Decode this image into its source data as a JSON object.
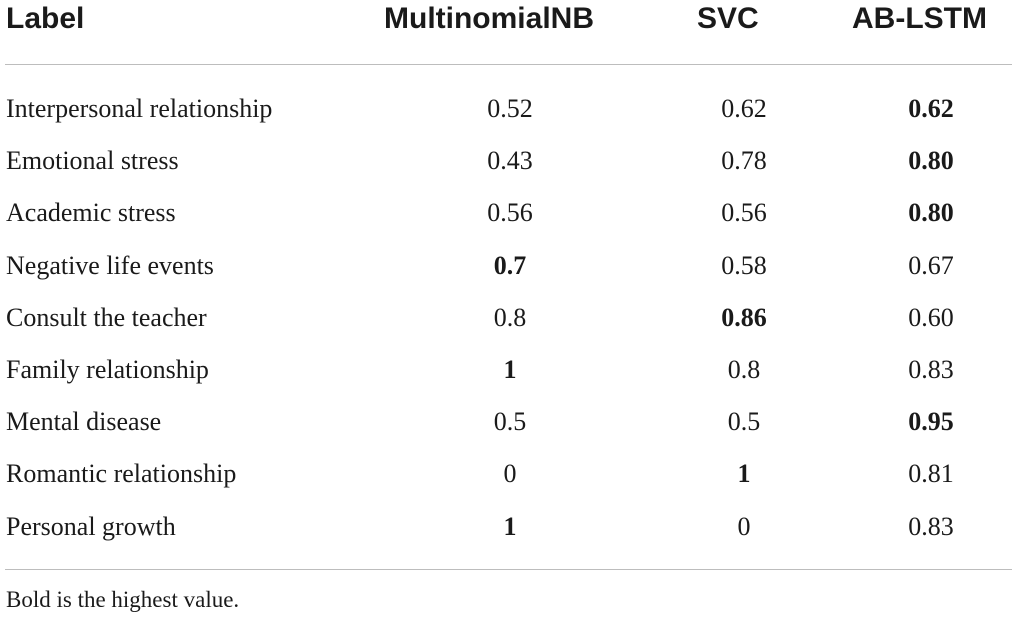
{
  "table": {
    "headers": {
      "label": "Label",
      "multinomialnb": "MultinomialNB",
      "svc": "SVC",
      "ab_lstm": "AB-LSTM"
    },
    "rows": [
      {
        "label": "Interpersonal relationship",
        "multinomialnb": "0.52",
        "svc": "0.62",
        "ab_lstm": "0.62",
        "bold": "ab_lstm"
      },
      {
        "label": "Emotional stress",
        "multinomialnb": "0.43",
        "svc": "0.78",
        "ab_lstm": "0.80",
        "bold": "ab_lstm"
      },
      {
        "label": "Academic stress",
        "multinomialnb": "0.56",
        "svc": "0.56",
        "ab_lstm": "0.80",
        "bold": "ab_lstm"
      },
      {
        "label": "Negative life events",
        "multinomialnb": "0.7",
        "svc": "0.58",
        "ab_lstm": "0.67",
        "bold": "multinomialnb"
      },
      {
        "label": "Consult the teacher",
        "multinomialnb": "0.8",
        "svc": "0.86",
        "ab_lstm": "0.60",
        "bold": "svc"
      },
      {
        "label": "Family relationship",
        "multinomialnb": "1",
        "svc": "0.8",
        "ab_lstm": "0.83",
        "bold": "multinomialnb"
      },
      {
        "label": "Mental disease",
        "multinomialnb": "0.5",
        "svc": "0.5",
        "ab_lstm": "0.95",
        "bold": "ab_lstm"
      },
      {
        "label": "Romantic relationship",
        "multinomialnb": "0",
        "svc": "1",
        "ab_lstm": "0.81",
        "bold": "svc"
      },
      {
        "label": "Personal growth",
        "multinomialnb": "1",
        "svc": "0",
        "ab_lstm": "0.83",
        "bold": "multinomialnb"
      }
    ],
    "footnote": "Bold is the highest value."
  }
}
